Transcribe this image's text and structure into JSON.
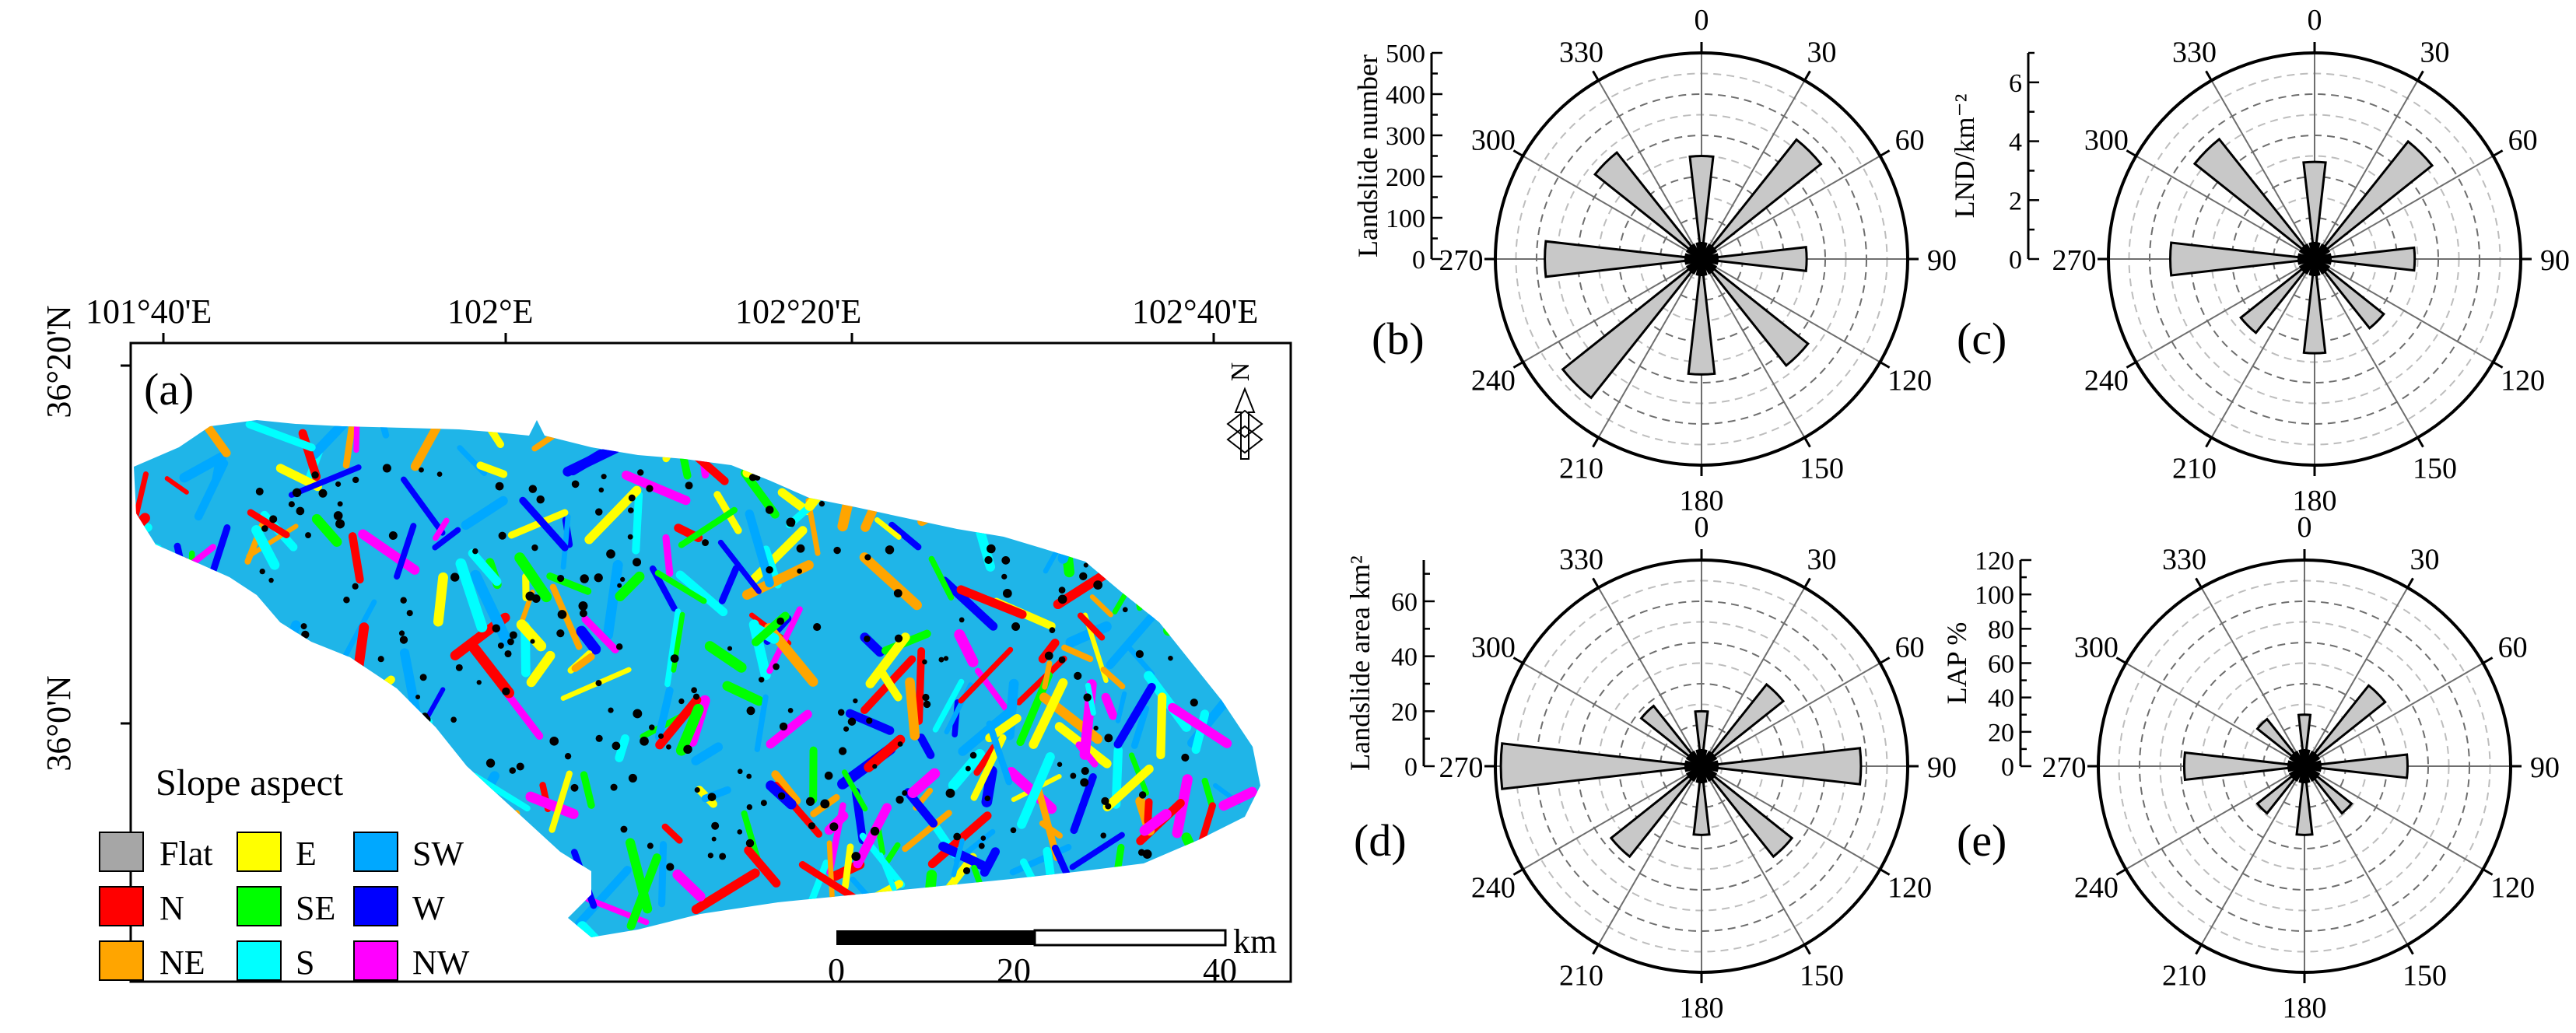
{
  "map": {
    "panel_label": "(a)",
    "lon_labels": [
      "101°40'E",
      "102°E",
      "102°20'E",
      "102°40'E"
    ],
    "lat_labels": [
      "36°20'N",
      "36°0'N"
    ],
    "north_label": "N",
    "scale_labels": [
      "0",
      "20",
      "40"
    ],
    "scale_unit": "km",
    "legend": {
      "title": "Slope aspect",
      "items": [
        {
          "label": "Flat",
          "color": "#a6a6a6"
        },
        {
          "label": "N",
          "color": "#ff0000"
        },
        {
          "label": "NE",
          "color": "#ffa500"
        },
        {
          "label": "E",
          "color": "#ffff00"
        },
        {
          "label": "SE",
          "color": "#00ff00"
        },
        {
          "label": "S",
          "color": "#00ffff"
        },
        {
          "label": "SW",
          "color": "#00a8ff"
        },
        {
          "label": "W",
          "color": "#0000ff"
        },
        {
          "label": "NW",
          "color": "#ff00ff"
        }
      ]
    }
  },
  "chart_data": [
    {
      "type": "polar_bar",
      "panel_label": "(b)",
      "rlabel": "Landslide number",
      "rlim": [
        0,
        500
      ],
      "rticks": [
        0,
        100,
        200,
        300,
        400,
        500
      ],
      "angle_ticks": [
        0,
        30,
        60,
        90,
        120,
        150,
        180,
        210,
        240,
        270,
        300,
        330
      ],
      "bar_color": "#c8c8c8",
      "angles": [
        0,
        45,
        90,
        135,
        180,
        225,
        270,
        315
      ],
      "values": [
        250,
        370,
        255,
        330,
        280,
        430,
        380,
        330
      ]
    },
    {
      "type": "polar_bar",
      "panel_label": "(c)",
      "rlabel": "LND/km⁻²",
      "rlim": [
        0,
        7
      ],
      "rticks": [
        0,
        2,
        4,
        6
      ],
      "angle_ticks": [
        0,
        30,
        60,
        90,
        120,
        150,
        180,
        210,
        240,
        270,
        300,
        330
      ],
      "bar_color": "#c8c8c8",
      "angles": [
        0,
        45,
        90,
        135,
        180,
        225,
        270,
        315
      ],
      "values": [
        3.3,
        5.1,
        3.4,
        3.0,
        3.2,
        3.2,
        4.9,
        5.2
      ]
    },
    {
      "type": "polar_bar",
      "panel_label": "(d)",
      "rlabel": "Landslide area km²",
      "rlim": [
        0,
        75
      ],
      "rticks": [
        0,
        20,
        40,
        60
      ],
      "angle_ticks": [
        0,
        30,
        60,
        90,
        120,
        150,
        180,
        210,
        240,
        270,
        300,
        330
      ],
      "bar_color": "#c8c8c8",
      "angles": [
        0,
        45,
        90,
        135,
        180,
        225,
        270,
        315
      ],
      "values": [
        20,
        38,
        58,
        42,
        25,
        42,
        73,
        28
      ]
    },
    {
      "type": "polar_bar",
      "panel_label": "(e)",
      "rlabel": "LAP %",
      "rlim": [
        0,
        120
      ],
      "rticks": [
        0,
        20,
        40,
        60,
        80,
        100,
        120
      ],
      "angle_ticks": [
        0,
        30,
        60,
        90,
        120,
        150,
        180,
        210,
        240,
        270,
        300,
        330
      ],
      "bar_color": "#c8c8c8",
      "angles": [
        0,
        45,
        90,
        135,
        180,
        225,
        270,
        315
      ],
      "values": [
        30,
        60,
        60,
        35,
        40,
        35,
        70,
        35
      ]
    }
  ]
}
